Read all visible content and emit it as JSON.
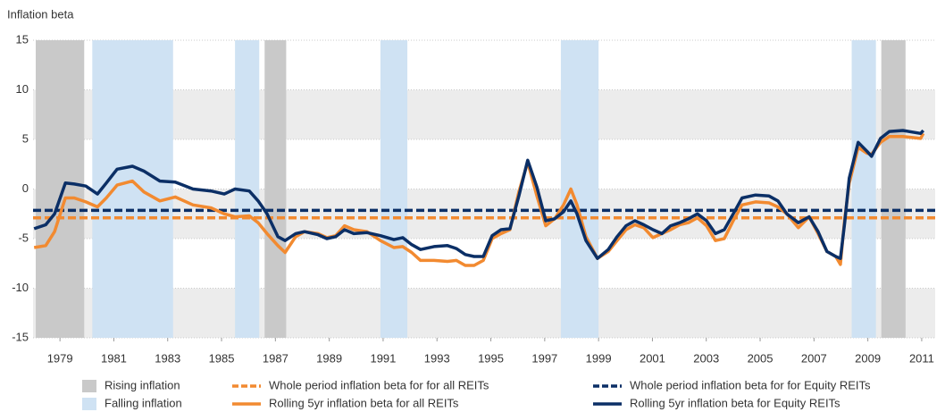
{
  "chart_data": {
    "type": "line",
    "y_label": "Inflation beta",
    "xlim": [
      1978,
      2011.5
    ],
    "xticks": [
      1979,
      1981,
      1983,
      1985,
      1987,
      1989,
      1991,
      1993,
      1995,
      1997,
      1999,
      2001,
      2003,
      2005,
      2007,
      2009,
      2011
    ],
    "ylim": [
      -15,
      15
    ],
    "yticks": [
      -15,
      -10,
      -5,
      0,
      5,
      10,
      15
    ],
    "banded": true,
    "legend": "bottom",
    "shading": [
      {
        "name": "Rising inflation",
        "color": "#c9c9c9",
        "spans": [
          [
            1978.1,
            1979.9
          ],
          [
            1986.6,
            1987.4
          ],
          [
            2009.5,
            2010.4
          ]
        ]
      },
      {
        "name": "Falling inflation",
        "color": "#cfe2f3",
        "spans": [
          [
            1980.2,
            1983.2
          ],
          [
            1985.5,
            1986.4
          ],
          [
            1990.9,
            1991.9
          ],
          [
            1997.6,
            1999.0
          ],
          [
            2008.4,
            2009.3
          ]
        ]
      }
    ],
    "reference_lines": [
      {
        "name": "Whole period inflation beta for for all REITs",
        "color": "#f28a30",
        "value": -2.9
      },
      {
        "name": "Whole period inflation beta for for Equity REITs",
        "color": "#0b2f66",
        "value": -2.15
      }
    ],
    "x": [
      1978.04,
      1978.47,
      1978.8,
      1979.2,
      1979.53,
      1979.96,
      1980.39,
      1980.72,
      1981.12,
      1981.69,
      1982.12,
      1982.71,
      1983.28,
      1983.94,
      1984.61,
      1985.1,
      1985.5,
      1986.03,
      1986.36,
      1986.69,
      1987.09,
      1987.36,
      1987.75,
      1988.08,
      1988.58,
      1988.91,
      1989.24,
      1989.57,
      1989.91,
      1990.4,
      1990.9,
      1991.4,
      1991.73,
      1992.06,
      1992.39,
      1992.89,
      1993.39,
      1993.72,
      1994.05,
      1994.38,
      1994.72,
      1995.05,
      1995.38,
      1995.71,
      1996.04,
      1996.37,
      1996.71,
      1997.04,
      1997.37,
      1997.7,
      1997.97,
      1998.2,
      1998.53,
      1998.96,
      1999.36,
      1999.69,
      2000.02,
      2000.35,
      2000.68,
      2001.02,
      2001.35,
      2001.68,
      2002.01,
      2002.34,
      2002.67,
      2003.01,
      2003.34,
      2003.67,
      2004.0,
      2004.33,
      2004.83,
      2005.33,
      2005.66,
      2005.99,
      2006.42,
      2006.82,
      2007.15,
      2007.48,
      2007.81,
      2007.98,
      2008.14,
      2008.31,
      2008.64,
      2008.97,
      2009.14,
      2009.47,
      2009.8,
      2010.3,
      2010.96,
      2011.06
    ],
    "series": [
      {
        "name": "Rolling 5yr inflation beta for all REITs",
        "color": "#f28a30",
        "values": [
          -5.9,
          -5.7,
          -4.3,
          -0.9,
          -0.9,
          -1.3,
          -1.8,
          -0.9,
          0.4,
          0.8,
          -0.3,
          -1.2,
          -0.8,
          -1.6,
          -1.9,
          -2.5,
          -2.8,
          -2.7,
          -3.4,
          -4.5,
          -5.7,
          -6.4,
          -4.8,
          -4.3,
          -4.5,
          -4.9,
          -4.7,
          -3.7,
          -4.1,
          -4.3,
          -5.2,
          -5.9,
          -5.8,
          -6.4,
          -7.2,
          -7.2,
          -7.3,
          -7.2,
          -7.7,
          -7.7,
          -7.2,
          -5.0,
          -4.5,
          -4.1,
          -0.3,
          2.7,
          -0.7,
          -3.7,
          -3.0,
          -1.6,
          0,
          -1.6,
          -4.8,
          -7.0,
          -6.3,
          -5.2,
          -4.1,
          -3.6,
          -3.9,
          -4.9,
          -4.5,
          -4.1,
          -3.6,
          -3.4,
          -2.9,
          -3.7,
          -5.2,
          -5.0,
          -3.2,
          -1.6,
          -1.3,
          -1.4,
          -1.8,
          -2.5,
          -3.9,
          -2.8,
          -4.5,
          -6.3,
          -6.8,
          -7.6,
          -3.0,
          0.6,
          4.2,
          3.6,
          3.5,
          4.7,
          5.3,
          5.3,
          5.1,
          5.6
        ]
      },
      {
        "name": "Rolling 5yr inflation beta for Equity REITs",
        "color": "#0b2f66",
        "values": [
          -4.0,
          -3.6,
          -2.5,
          0.6,
          0.5,
          0.3,
          -0.5,
          0.6,
          2.0,
          2.3,
          1.8,
          0.8,
          0.7,
          0,
          -0.2,
          -0.5,
          0,
          -0.2,
          -1.2,
          -2.5,
          -4.8,
          -5.2,
          -4.5,
          -4.3,
          -4.6,
          -5.0,
          -4.8,
          -4.1,
          -4.5,
          -4.4,
          -4.7,
          -5.1,
          -4.9,
          -5.6,
          -6.1,
          -5.8,
          -5.7,
          -6.0,
          -6.6,
          -6.8,
          -6.8,
          -4.7,
          -4.1,
          -4.0,
          -0.7,
          2.9,
          0.2,
          -3.2,
          -3.0,
          -2.3,
          -1.2,
          -2.5,
          -5.2,
          -7.0,
          -6.1,
          -4.8,
          -3.7,
          -3.2,
          -3.6,
          -4.1,
          -4.5,
          -3.7,
          -3.4,
          -3.0,
          -2.5,
          -3.2,
          -4.5,
          -4.1,
          -2.5,
          -0.9,
          -0.6,
          -0.7,
          -1.2,
          -2.5,
          -3.4,
          -2.8,
          -4.3,
          -6.3,
          -6.8,
          -7.0,
          -3.4,
          1.1,
          4.7,
          3.8,
          3.3,
          5.1,
          5.8,
          5.9,
          5.6,
          5.9
        ]
      }
    ]
  }
}
